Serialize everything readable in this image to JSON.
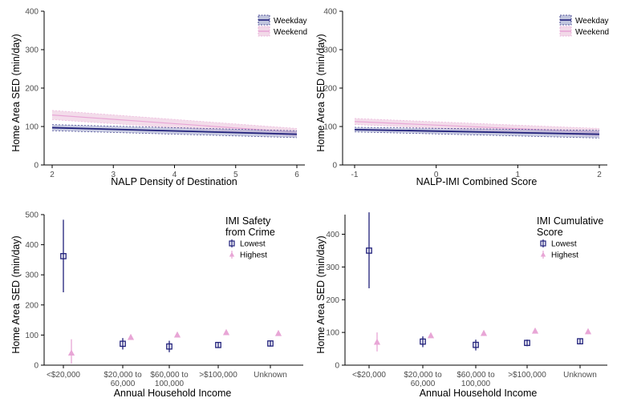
{
  "colors": {
    "weekday": "#1f1f7a",
    "weekend": "#e8a6d6",
    "band_weekday": "#9aa0c8",
    "band_weekend": "#e9bfd9"
  },
  "chart_data": [
    {
      "type": "line",
      "xlabel": "NALP Density of Destination",
      "ylabel": "Home Area SED (min/day)",
      "xlim": [
        2,
        6
      ],
      "ylim": [
        0,
        400
      ],
      "xticks": [
        "2",
        "3",
        "4",
        "5",
        "6"
      ],
      "yticks": [
        "0",
        "100",
        "200",
        "300",
        "400"
      ],
      "legend": "top-right",
      "series": [
        {
          "name": "Weekday",
          "x": [
            2,
            6
          ],
          "y": [
            97,
            80
          ],
          "ci": [
            8,
            9
          ]
        },
        {
          "name": "Weekend",
          "x": [
            2,
            6
          ],
          "y": [
            130,
            85
          ],
          "ci": [
            12,
            10
          ]
        }
      ]
    },
    {
      "type": "line",
      "xlabel": "NALP-IMI Combined Score",
      "ylabel": "Home Area SED (min/day)",
      "xlim": [
        -1,
        2
      ],
      "ylim": [
        0,
        400
      ],
      "xticks": [
        "-1",
        "0",
        "1",
        "2"
      ],
      "yticks": [
        "0",
        "100",
        "200",
        "300",
        "400"
      ],
      "legend": "top-right",
      "series": [
        {
          "name": "Weekday",
          "x": [
            -1,
            2
          ],
          "y": [
            92,
            80
          ],
          "ci": [
            6,
            10
          ]
        },
        {
          "name": "Weekend",
          "x": [
            -1,
            2
          ],
          "y": [
            113,
            85
          ],
          "ci": [
            8,
            10
          ]
        }
      ]
    },
    {
      "type": "scatter",
      "xlabel": "Annual Household Income",
      "ylabel": "Home Area SED (min/day)",
      "ylim": [
        0,
        500
      ],
      "yticks": [
        "0",
        "100",
        "200",
        "300",
        "400",
        "500"
      ],
      "categories": [
        "<$20,000",
        "$20,000 to\n60,000",
        "$60,000 to\n100,000",
        ">$100,000",
        "Unknown"
      ],
      "legend_title": "IMI Safety\nfrom Crime",
      "legend": "top-right",
      "series": [
        {
          "name": "Lowest",
          "values": [
            362,
            71,
            62,
            67,
            72
          ],
          "lower": [
            242,
            52,
            43,
            58,
            62
          ],
          "upper": [
            483,
            90,
            81,
            77,
            82
          ]
        },
        {
          "name": "Highest",
          "values": [
            40,
            92,
            100,
            108,
            105
          ],
          "lower": [
            5,
            84,
            93,
            103,
            100
          ],
          "upper": [
            86,
            100,
            108,
            113,
            110
          ]
        }
      ]
    },
    {
      "type": "scatter",
      "xlabel": "Annual Household Income",
      "ylabel": "Home Area SED (min/day)",
      "ylim": [
        0,
        460
      ],
      "yticks": [
        "0",
        "100",
        "200",
        "300",
        "400"
      ],
      "categories": [
        "<$20,000",
        "$20,000 to\n60,000",
        "$60,000 to\n100,000",
        ">$100,000",
        "Unknown"
      ],
      "legend_title": "IMI Cumulative\nScore",
      "legend": "top-right",
      "series": [
        {
          "name": "Lowest",
          "values": [
            350,
            72,
            62,
            68,
            73
          ],
          "lower": [
            235,
            55,
            45,
            58,
            64
          ],
          "upper": [
            467,
            88,
            78,
            78,
            82
          ]
        },
        {
          "name": "Highest",
          "values": [
            70,
            90,
            97,
            104,
            102
          ],
          "lower": [
            42,
            84,
            91,
            99,
            98
          ],
          "upper": [
            100,
            97,
            103,
            109,
            107
          ]
        }
      ]
    }
  ]
}
